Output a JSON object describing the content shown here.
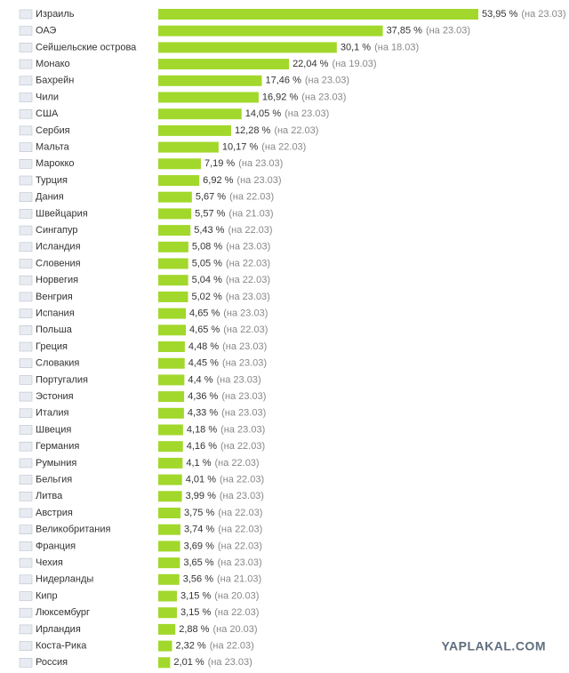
{
  "chart_data": {
    "type": "bar",
    "orientation": "horizontal",
    "color": "#a2d82b",
    "categories": [
      "Израиль",
      "ОАЭ",
      "Сейшельские острова",
      "Монако",
      "Бахрейн",
      "Чили",
      "США",
      "Сербия",
      "Мальта",
      "Марокко",
      "Турция",
      "Дания",
      "Швейцария",
      "Сингапур",
      "Исландия",
      "Словения",
      "Норвегия",
      "Венгрия",
      "Испания",
      "Польша",
      "Греция",
      "Словакия",
      "Португалия",
      "Эстония",
      "Италия",
      "Швеция",
      "Германия",
      "Румыния",
      "Бельгия",
      "Литва",
      "Австрия",
      "Великобритания",
      "Франция",
      "Чехия",
      "Нидерланды",
      "Кипр",
      "Люксембург",
      "Ирландия",
      "Коста-Рика",
      "Россия"
    ],
    "values": [
      53.95,
      37.85,
      30.1,
      22.04,
      17.46,
      16.92,
      14.05,
      12.28,
      10.17,
      7.19,
      6.92,
      5.67,
      5.57,
      5.43,
      5.08,
      5.05,
      5.04,
      5.02,
      4.65,
      4.65,
      4.48,
      4.45,
      4.4,
      4.36,
      4.33,
      4.18,
      4.16,
      4.1,
      4.01,
      3.99,
      3.75,
      3.74,
      3.69,
      3.65,
      3.56,
      3.15,
      3.15,
      2.88,
      2.32,
      2.01
    ],
    "value_labels": [
      "53,95 %",
      "37,85 %",
      "30,1 %",
      "22,04 %",
      "17,46 %",
      "16,92 %",
      "14,05 %",
      "12,28 %",
      "10,17 %",
      "7,19 %",
      "6,92 %",
      "5,67 %",
      "5,57 %",
      "5,43 %",
      "5,08 %",
      "5,05 %",
      "5,04 %",
      "5,02 %",
      "4,65 %",
      "4,65 %",
      "4,48 %",
      "4,45 %",
      "4,4 %",
      "4,36 %",
      "4,33 %",
      "4,18 %",
      "4,16 %",
      "4,1 %",
      "4,01 %",
      "3,99 %",
      "3,75 %",
      "3,74 %",
      "3,69 %",
      "3,65 %",
      "3,56 %",
      "3,15 %",
      "3,15 %",
      "2,88 %",
      "2,32 %",
      "2,01 %"
    ],
    "notes": [
      "(на 23.03)",
      "(на 23.03)",
      "(на 18.03)",
      "(на 19.03)",
      "(на 23.03)",
      "(на 23.03)",
      "(на 23.03)",
      "(на 22.03)",
      "(на 22.03)",
      "(на 23.03)",
      "(на 23.03)",
      "(на 22.03)",
      "(на 21.03)",
      "(на 22.03)",
      "(на 23.03)",
      "(на 22.03)",
      "(на 22.03)",
      "(на 23.03)",
      "(на 23.03)",
      "(на 22.03)",
      "(на 23.03)",
      "(на 23.03)",
      "(на 23.03)",
      "(на 23.03)",
      "(на 23.03)",
      "(на 23.03)",
      "(на 22.03)",
      "(на 22.03)",
      "(на 22.03)",
      "(на 23.03)",
      "(на 22.03)",
      "(на 22.03)",
      "(на 22.03)",
      "(на 23.03)",
      "(на 21.03)",
      "(на 20.03)",
      "(на 22.03)",
      "(на 20.03)",
      "(на 22.03)",
      "(на 23.03)"
    ],
    "watermark": "YAPLAKAL.COM"
  }
}
